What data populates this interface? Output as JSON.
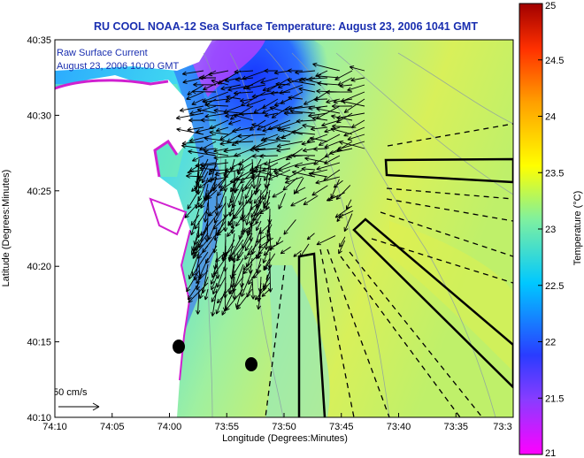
{
  "chart_data": {
    "type": "heatmap",
    "title": "RU COOL  NOAA-12  Sea Surface Temperature:  August 23, 2006 1041 GMT",
    "xlabel": "Longitude (Degrees:Minutes)",
    "ylabel": "Latitude (Degrees:Minutes)",
    "colorbar_label": "Temperature (°C)",
    "x_ticks": [
      "74:10",
      "74:05",
      "74:00",
      "73:55",
      "73:50",
      "73:45",
      "73:40",
      "73:35",
      "73:3"
    ],
    "y_ticks": [
      "40:35",
      "40:30",
      "40:25",
      "40:20",
      "40:15",
      "40:10"
    ],
    "colorbar_ticks": [
      "25",
      "24.5",
      "24",
      "23.5",
      "23",
      "22.5",
      "22",
      "21.5",
      "21"
    ],
    "xlim": [
      "74:10",
      "73:30"
    ],
    "ylim": [
      "40:10",
      "40:35"
    ],
    "clim": [
      21,
      25
    ],
    "colormap": [
      "#ff00ff",
      "#3a3cff",
      "#00e0ff",
      "#ffff00",
      "#ff8c00",
      "#b00000"
    ],
    "annotations": {
      "current_label_1": "Raw Surface Current",
      "current_label_2": "August 23, 2006 10:00 GMT",
      "scale_label": "50 cm/s"
    },
    "grid": false
  }
}
